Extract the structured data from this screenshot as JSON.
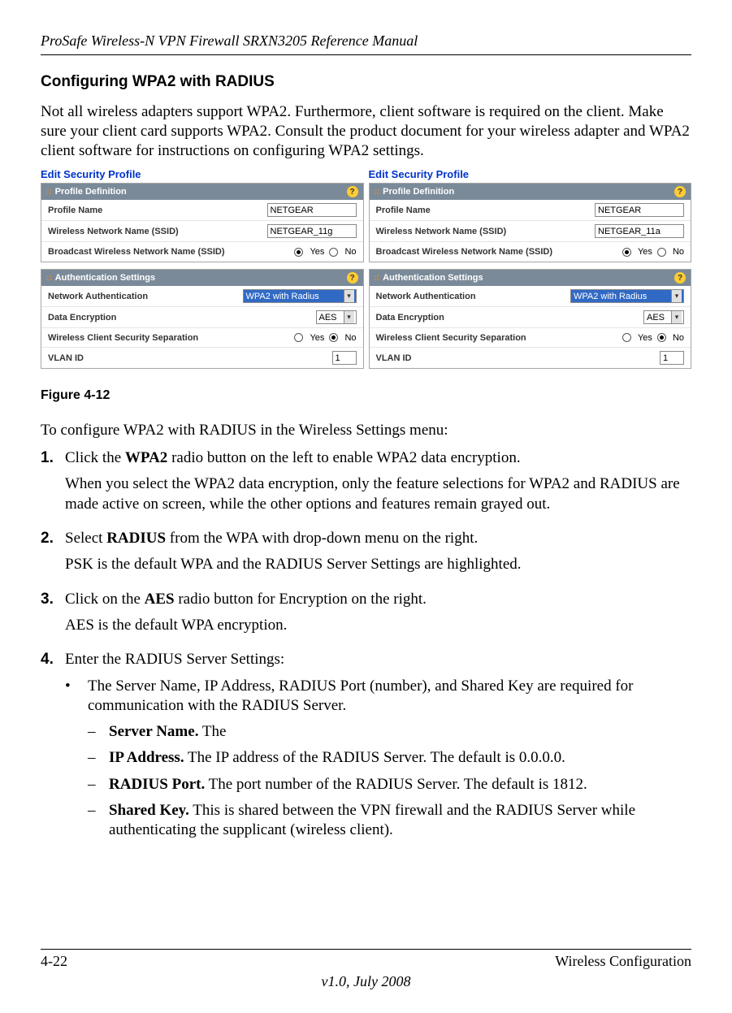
{
  "doc": {
    "header_title": "ProSafe Wireless-N VPN Firewall SRXN3205 Reference Manual",
    "section_heading": "Configuring WPA2 with RADIUS",
    "intro_para": "Not all wireless adapters support WPA2. Furthermore, client software is required on the client. Make sure your client card supports WPA2. Consult the product document for your wireless adapter and WPA2 client software for instructions on configuring WPA2 settings.",
    "figure_caption": "Figure 4-12",
    "config_intro": "To configure WPA2 with RADIUS in the Wireless Settings menu:"
  },
  "screens": {
    "left": {
      "title": "Edit Security Profile",
      "profile_panel": "Profile Definition",
      "auth_panel": "Authentication Settings",
      "profile_name_label": "Profile Name",
      "profile_name_value": "NETGEAR",
      "ssid_label": "Wireless Network Name (SSID)",
      "ssid_value": "NETGEAR_11g",
      "broadcast_label": "Broadcast Wireless Network Name (SSID)",
      "yes": "Yes",
      "no": "No",
      "auth_label": "Network Authentication",
      "auth_value": "WPA2 with Radius",
      "enc_label": "Data Encryption",
      "enc_value": "AES",
      "sep_label": "Wireless Client Security Separation",
      "vlan_label": "VLAN ID",
      "vlan_value": "1"
    },
    "right": {
      "title": "Edit Security Profile",
      "profile_panel": "Profile Definition",
      "auth_panel": "Authentication Settings",
      "profile_name_label": "Profile Name",
      "profile_name_value": "NETGEAR",
      "ssid_label": "Wireless Network Name (SSID)",
      "ssid_value": "NETGEAR_11a",
      "broadcast_label": "Broadcast Wireless Network Name (SSID)",
      "yes": "Yes",
      "no": "No",
      "auth_label": "Network Authentication",
      "auth_value": "WPA2 with Radius",
      "enc_label": "Data Encryption",
      "enc_value": "AES",
      "sep_label": "Wireless Client Security Separation",
      "vlan_label": "VLAN ID",
      "vlan_value": "1"
    }
  },
  "steps": {
    "s1_a": "Click the ",
    "s1_bold": "WPA2",
    "s1_b": " radio button on the left to enable WPA2 data encryption.",
    "s1_p2": "When you select the WPA2 data encryption, only the feature selections for WPA2 and RADIUS are made active on screen, while the other options and features remain grayed out.",
    "s2_a": "Select ",
    "s2_bold": "RADIUS",
    "s2_b": " from the WPA with drop-down menu on the right.",
    "s2_p2": "PSK is the default WPA and the RADIUS Server Settings are highlighted.",
    "s3_a": "Click on the ",
    "s3_bold": "AES",
    "s3_b": " radio button for Encryption on the right.",
    "s3_p2": "AES is the default WPA encryption.",
    "s4": "Enter the RADIUS Server Settings:",
    "s4_bullet": "The Server Name, IP Address, RADIUS Port (number), and Shared Key are required for communication with the RADIUS Server.",
    "d1_bold": "Server Name.",
    "d1_text": " The",
    "d2_bold": "IP Address.",
    "d2_text": " The IP address of the RADIUS Server. The default is 0.0.0.0.",
    "d3_bold": "RADIUS Port.",
    "d3_text": " The port number of the RADIUS Server. The default is 1812.",
    "d4_bold": "Shared Key.",
    "d4_text": " This is shared between the VPN firewall and the RADIUS Server while authenticating the supplicant (wireless client)."
  },
  "footer": {
    "page": "4-22",
    "section": "Wireless Configuration",
    "version": "v1.0, July 2008"
  }
}
